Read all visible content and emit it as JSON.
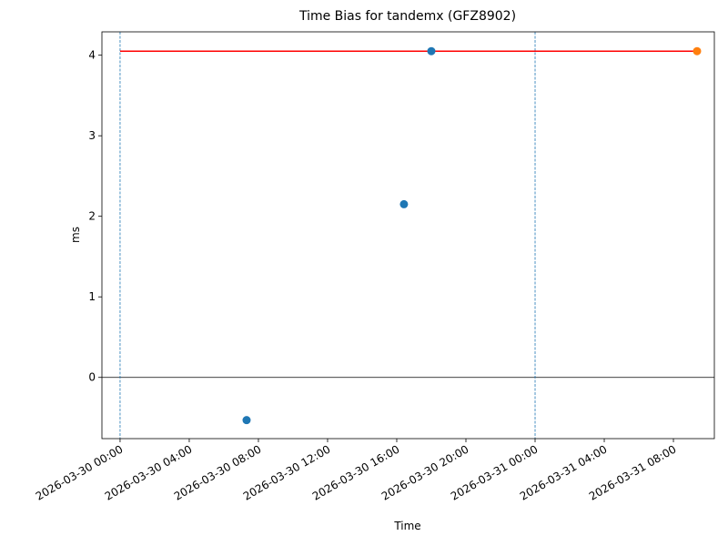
{
  "chart_data": {
    "type": "scatter",
    "title": "Time Bias for tandemx (GFZ8902)",
    "xlabel": "Time",
    "ylabel": "ms",
    "xlim": [
      "2026-03-29 22:57",
      "2026-03-31 10:22"
    ],
    "ylim": [
      -0.76,
      4.29
    ],
    "xticks": [
      "2026-03-30 00:00",
      "2026-03-30 04:00",
      "2026-03-30 08:00",
      "2026-03-30 12:00",
      "2026-03-30 16:00",
      "2026-03-30 20:00",
      "2026-03-31 00:00",
      "2026-03-31 04:00",
      "2026-03-31 08:00"
    ],
    "yticks": [
      0,
      1,
      2,
      3,
      4
    ],
    "hline": {
      "y": 0,
      "color": "#000000"
    },
    "vlines": {
      "x": [
        "2026-03-30 00:00",
        "2026-03-31 00:00"
      ],
      "color": "#1f77b4"
    },
    "series": [
      {
        "style": "line",
        "color": "#ff0000",
        "x": [
          "2026-03-30 00:00",
          "2026-03-31 09:22"
        ],
        "values": [
          4.05,
          4.05
        ]
      },
      {
        "style": "points",
        "color": "#1f77b4",
        "x": [
          "2026-03-30 07:19",
          "2026-03-30 16:25",
          "2026-03-30 18:00"
        ],
        "values": [
          -0.53,
          2.15,
          4.05
        ]
      },
      {
        "style": "points",
        "color": "#ff7f0e",
        "x": [
          "2026-03-31 09:22"
        ],
        "values": [
          4.05
        ]
      }
    ]
  }
}
